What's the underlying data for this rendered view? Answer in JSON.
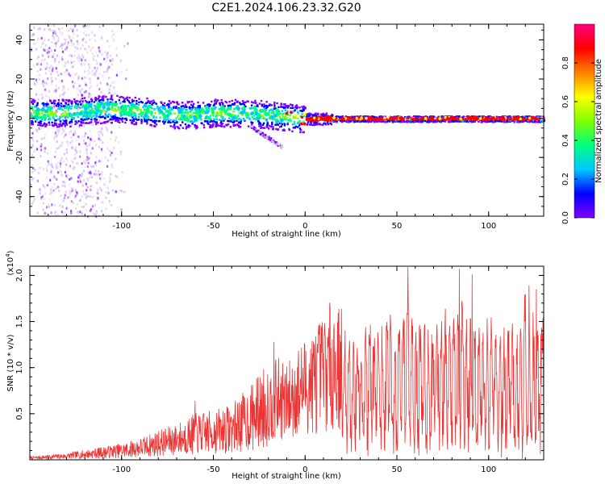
{
  "title": "C2E1.2024.106.23.32.G20",
  "chart_data": [
    {
      "type": "heatmap",
      "xlabel": "Height of straight line (km)",
      "ylabel": "Frequency (Hz)",
      "xlim": [
        -150,
        130
      ],
      "ylim": [
        -50,
        48
      ],
      "xticks": [
        -100,
        -50,
        0,
        50,
        100
      ],
      "yticks": [
        -40,
        -20,
        0,
        20,
        40
      ],
      "grid": false,
      "colorbar": {
        "label": "Normalized spectral amplitude",
        "range": [
          0,
          1
        ],
        "ticks": [
          0.0,
          0.2,
          0.4,
          0.6,
          0.8
        ],
        "colormap": [
          "#ffffff",
          "#c8b4f0",
          "#8000ff",
          "#0000ff",
          "#00c8ff",
          "#00ff80",
          "#80ff00",
          "#ffff00",
          "#ff8000",
          "#ff0000",
          "#ff0080"
        ]
      },
      "ridge_center_hz": {
        "x": [
          -150,
          -140,
          -130,
          -120,
          -110,
          -100,
          -90,
          -80,
          -70,
          -60,
          -50,
          -40,
          -30,
          -20,
          -10,
          0,
          10,
          20,
          40,
          60,
          80,
          100,
          130
        ],
        "y": [
          3,
          3,
          3,
          4,
          5,
          5,
          4,
          3,
          2,
          2,
          3,
          3,
          3,
          2,
          1,
          0,
          0,
          0,
          0,
          0,
          0,
          0,
          0
        ]
      }
    },
    {
      "type": "line",
      "xlabel": "Height of straight line (km)",
      "ylabel": "SNR (10 * v/v)",
      "y_multiplier": "(x10",
      "y_multiplier_exp": "4",
      "y_multiplier_close": ")",
      "xlim": [
        -150,
        130
      ],
      "ylim": [
        0,
        2.1
      ],
      "xticks": [
        -100,
        -50,
        0,
        50,
        100
      ],
      "yticks": [
        0.5,
        1.0,
        1.5,
        2.0
      ],
      "ytick_labels": [
        "0.5",
        "1.0",
        "1.5",
        "2.0"
      ],
      "color": "#ee3333",
      "grid": false,
      "series": [
        {
          "x": [
            -150,
            -140,
            -130,
            -120,
            -110,
            -100,
            -90,
            -80,
            -70,
            -60,
            -50,
            -40,
            -30,
            -20,
            -15,
            -10,
            -5,
            0,
            5,
            10,
            15,
            20,
            25,
            30,
            35,
            40,
            45,
            50,
            55,
            60,
            65,
            70,
            75,
            80,
            85,
            90,
            95,
            100,
            105,
            110,
            115,
            120,
            125,
            130
          ],
          "y": [
            0.02,
            0.03,
            0.04,
            0.06,
            0.08,
            0.1,
            0.13,
            0.18,
            0.22,
            0.28,
            0.3,
            0.34,
            0.45,
            0.6,
            0.7,
            0.65,
            0.75,
            0.85,
            0.9,
            1.0,
            1.1,
            1.05,
            1.2,
            1.0,
            1.25,
            1.15,
            1.3,
            1.1,
            1.5,
            1.2,
            1.3,
            1.15,
            1.35,
            1.25,
            1.4,
            1.3,
            1.2,
            1.3,
            1.1,
            1.3,
            1.2,
            1.4,
            1.3,
            1.5
          ]
        }
      ],
      "peaks": [
        {
          "x": 56,
          "y": 2.09
        },
        {
          "x": 84,
          "y": 2.07
        },
        {
          "x": 91,
          "y": 2.01
        },
        {
          "x": 122,
          "y": 1.89
        },
        {
          "x": 126,
          "y": 1.85
        },
        {
          "x": -17,
          "y": 1.28
        },
        {
          "x": -60,
          "y": 0.64
        }
      ]
    }
  ]
}
